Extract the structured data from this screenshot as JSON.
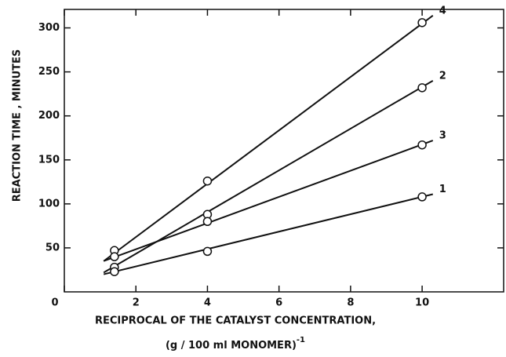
{
  "chart_data": {
    "type": "scatter",
    "x_label": "RECIPROCAL OF THE CATALYST CONCENTRATION,",
    "x_label_2": "(g / 100 ml MONOMER)",
    "x_label_exponent": "-1",
    "y_label": "REACTION TIME , MINUTES",
    "x": [
      1.4,
      4,
      10
    ],
    "fit_x": [
      1.1,
      10.3
    ],
    "series": [
      {
        "name": "4",
        "color": "#111111",
        "values": [
          47,
          126,
          306
        ],
        "fit": [
          35,
          314
        ]
      },
      {
        "name": "2",
        "color": "#111111",
        "values": [
          28,
          88,
          232
        ],
        "fit": [
          22,
          240
        ]
      },
      {
        "name": "3",
        "color": "#111111",
        "values": [
          40,
          80,
          167
        ],
        "fit": [
          35,
          172
        ]
      },
      {
        "name": "1",
        "color": "#111111",
        "values": [
          23,
          46,
          108
        ],
        "fit": [
          20,
          111
        ]
      }
    ],
    "xlim": [
      0,
      12.3
    ],
    "ylim": [
      0,
      321
    ],
    "xticks": [
      0,
      2,
      4,
      6,
      8,
      10
    ],
    "yticks": [
      50,
      100,
      150,
      200,
      250,
      300
    ],
    "grid": false
  }
}
